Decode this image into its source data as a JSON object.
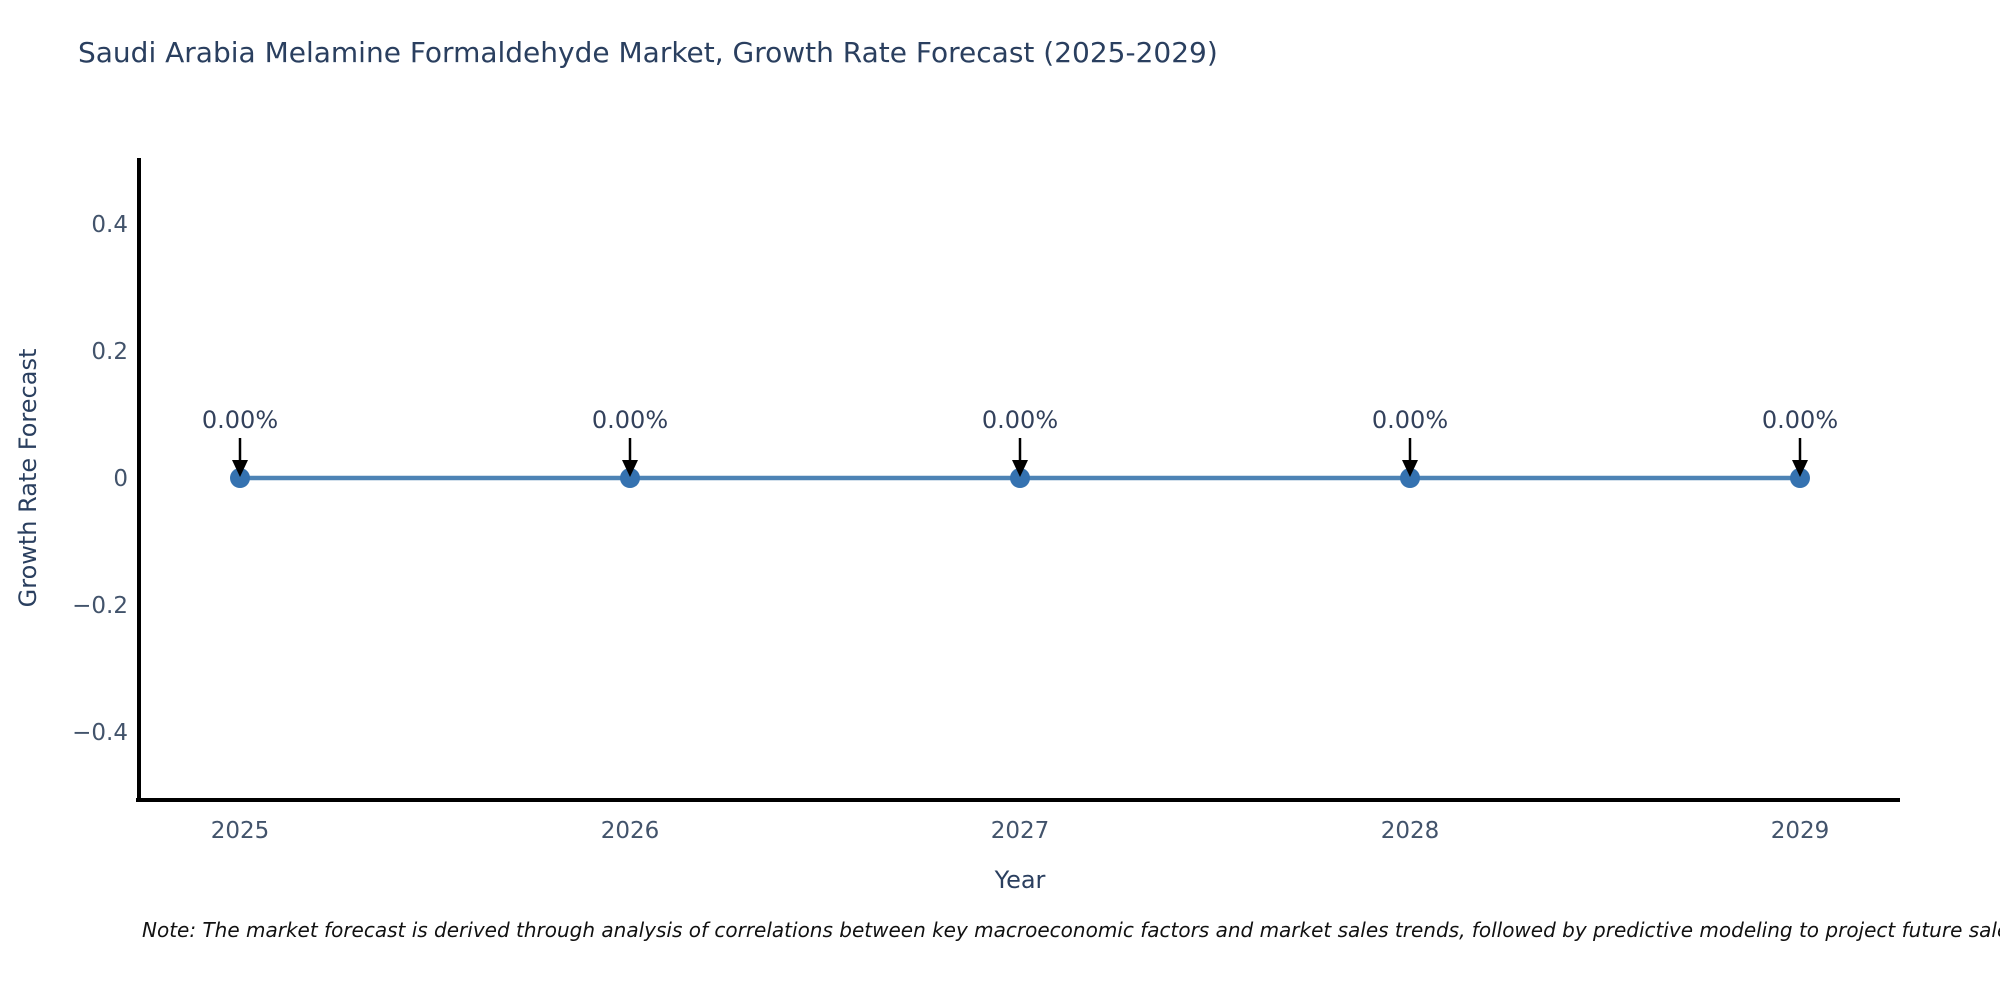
{
  "chart_data": {
    "type": "line",
    "title": "Saudi Arabia Melamine Formaldehyde Market, Growth Rate Forecast (2025-2029)",
    "xlabel": "Year",
    "ylabel": "Growth Rate Forecast",
    "categories": [
      "2025",
      "2026",
      "2027",
      "2028",
      "2029"
    ],
    "series": [
      {
        "name": "Growth Rate Forecast",
        "values": [
          0,
          0,
          0,
          0,
          0
        ]
      }
    ],
    "point_labels": [
      "0.00%",
      "0.00%",
      "0.00%",
      "0.00%",
      "0.00%"
    ],
    "yticks": [
      0.4,
      0.2,
      0,
      -0.2,
      -0.4
    ],
    "ytick_labels": [
      "0.4",
      "0.2",
      "0",
      "−0.2",
      "−0.4"
    ],
    "ylim": [
      -0.5,
      0.5
    ],
    "grid": false,
    "legend": false,
    "line_color": "#4d83b5",
    "marker_color": "#3572b0",
    "axis_color": "#000000",
    "tick_label_color": "#42536b",
    "annotation_text_color": "#33415c",
    "annotation_arrow_color": "#000000",
    "title_color": "#2a3f5f"
  },
  "note": {
    "text": "Note: The market forecast is derived through analysis of correlations between key macroeconomic factors and market sales trends, followed by predictive modeling to project future sales"
  }
}
